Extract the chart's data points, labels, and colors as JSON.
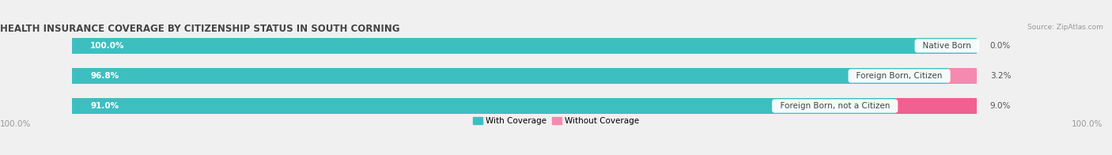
{
  "title": "HEALTH INSURANCE COVERAGE BY CITIZENSHIP STATUS IN SOUTH CORNING",
  "source": "Source: ZipAtlas.com",
  "categories": [
    "Native Born",
    "Foreign Born, Citizen",
    "Foreign Born, not a Citizen"
  ],
  "with_coverage": [
    100.0,
    96.8,
    91.0
  ],
  "without_coverage": [
    0.0,
    3.2,
    9.0
  ],
  "color_with": "#3dbfc0",
  "color_without_light": "#f9b8cc",
  "color_without_dark": "#f06090",
  "color_without_mid": "#f48ab0",
  "bg_color": "#f0f0f0",
  "bar_bg_color": "#e0e0e0",
  "title_fontsize": 8.5,
  "label_fontsize": 7.5,
  "axis_label_fontsize": 7.5,
  "legend_fontsize": 7.5,
  "left_label": "100.0%",
  "right_label": "100.0%",
  "bar_colors_without": [
    "#f9b8cc",
    "#f48ab0",
    "#f06090"
  ]
}
